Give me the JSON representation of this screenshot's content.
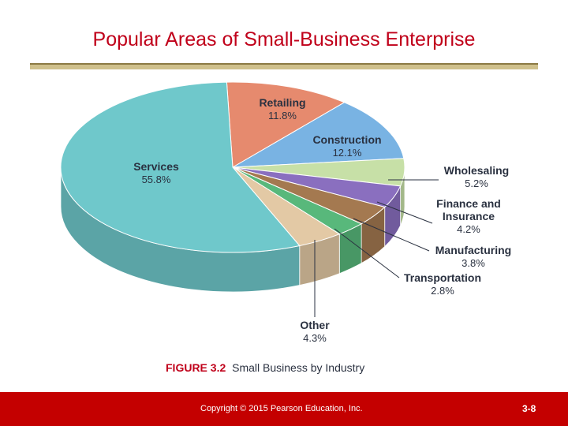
{
  "slide": {
    "title": "Popular Areas of Small-Business Enterprise",
    "footer_copyright": "Copyright © 2015 Pearson Education, Inc.",
    "page_number": "3-8"
  },
  "figure": {
    "number": "FIGURE 3.2",
    "caption": "Small Business by Industry"
  },
  "chart_data": {
    "type": "pie",
    "title": "Small Business by Industry",
    "slices": [
      {
        "name": "Retailing",
        "value": 11.8,
        "label": "11.8%",
        "color": "#e68a6e"
      },
      {
        "name": "Construction",
        "value": 12.1,
        "label": "12.1%",
        "color": "#79b3e3"
      },
      {
        "name": "Wholesaling",
        "value": 5.2,
        "label": "5.2%",
        "color": "#c7e0a7"
      },
      {
        "name": "Finance and Insurance",
        "value": 4.2,
        "label": "4.2%",
        "color": "#8a6fbf"
      },
      {
        "name": "Manufacturing",
        "value": 3.8,
        "label": "3.8%",
        "color": "#a47950"
      },
      {
        "name": "Transportation",
        "value": 2.8,
        "label": "2.8%",
        "color": "#58b87b"
      },
      {
        "name": "Other",
        "value": 4.3,
        "label": "4.3%",
        "color": "#e3c9a5"
      },
      {
        "name": "Services",
        "value": 55.8,
        "label": "55.8%",
        "color": "#6fc8cb"
      }
    ],
    "label_lines": [
      {
        "name_lines": [
          "Retailing"
        ],
        "value": "11.8%"
      },
      {
        "name_lines": [
          "Construction"
        ],
        "value": "12.1%"
      },
      {
        "name_lines": [
          "Wholesaling"
        ],
        "value": "5.2%"
      },
      {
        "name_lines": [
          "Finance and",
          "Insurance"
        ],
        "value": "4.2%"
      },
      {
        "name_lines": [
          "Manufacturing"
        ],
        "value": "3.8%"
      },
      {
        "name_lines": [
          "Transportation"
        ],
        "value": "2.8%"
      },
      {
        "name_lines": [
          "Other"
        ],
        "value": "4.3%"
      },
      {
        "name_lines": [
          "Services"
        ],
        "value": "55.8%"
      }
    ],
    "style": "3d-pie"
  }
}
